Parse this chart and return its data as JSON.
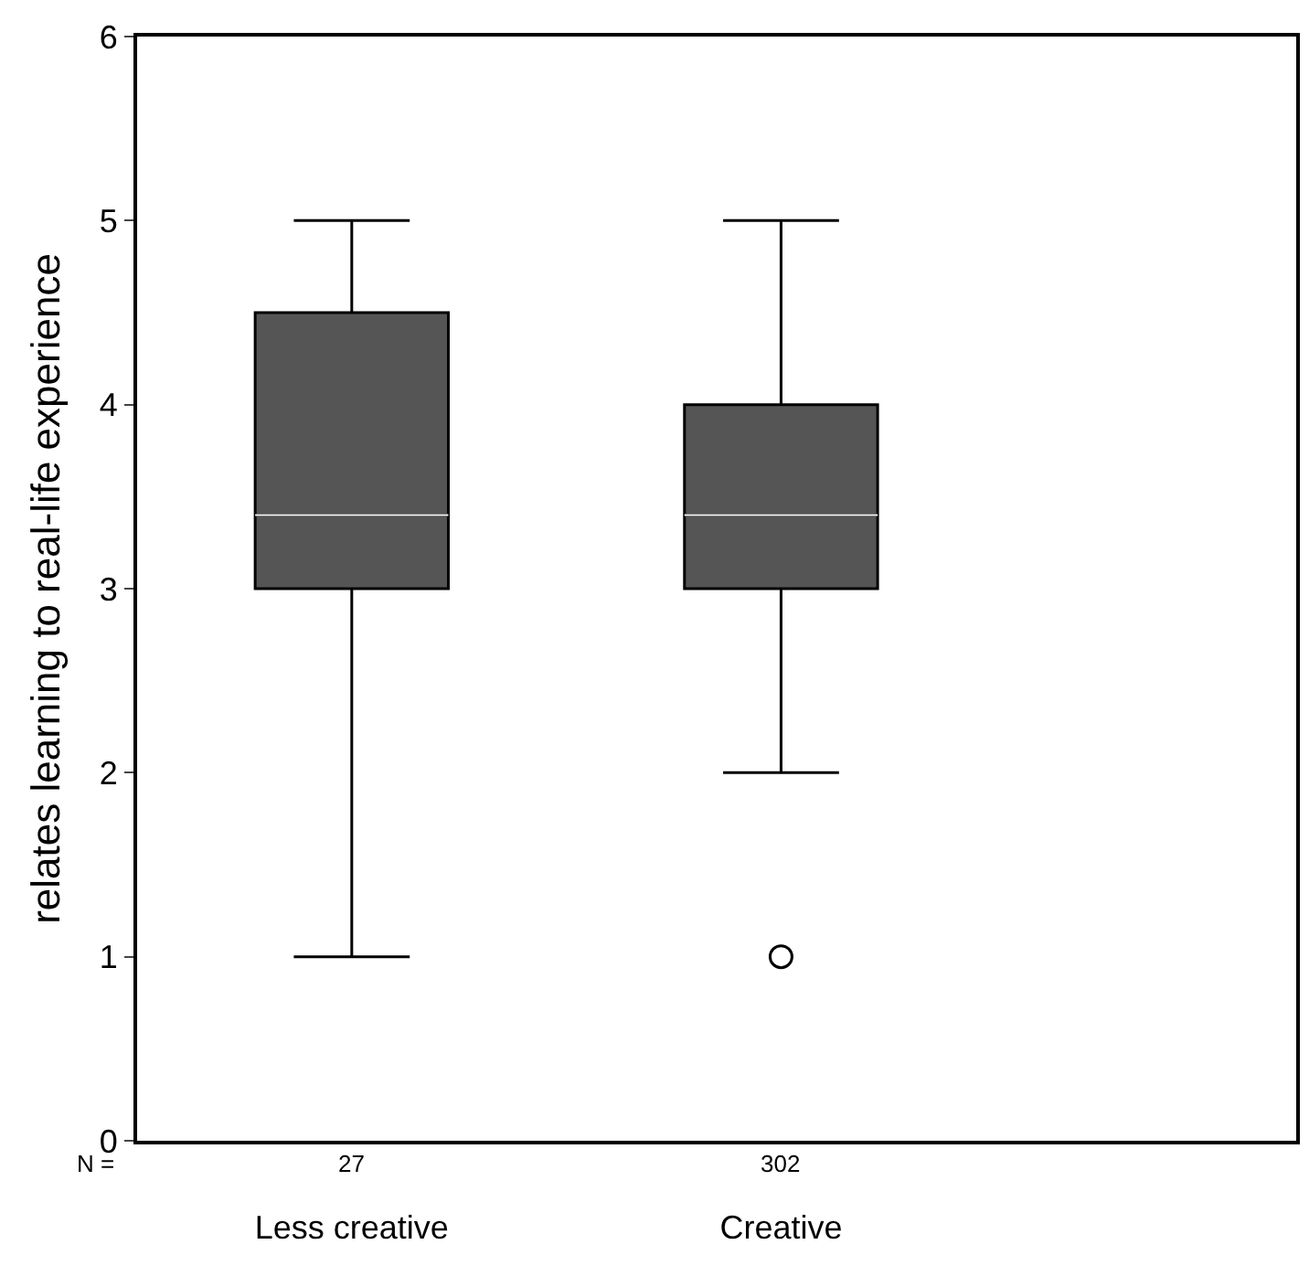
{
  "chart_data": {
    "type": "box",
    "ylabel": "relates learning to real-life experience",
    "categories": [
      "Less creative",
      "Creative"
    ],
    "boxes": [
      {
        "low": 1,
        "q1": 3,
        "median": 3.4,
        "q3": 4.5,
        "high": 5
      },
      {
        "low": 2,
        "q1": 3,
        "median": 3.4,
        "q3": 4,
        "high": 5,
        "outliers": [
          1
        ]
      }
    ],
    "color": "#555555",
    "ylim": [
      0,
      6
    ],
    "yticks": [
      0,
      1,
      2,
      3,
      4,
      5,
      6
    ],
    "marker": "circle",
    "annotations": [
      "N =",
      "27",
      "302"
    ]
  }
}
